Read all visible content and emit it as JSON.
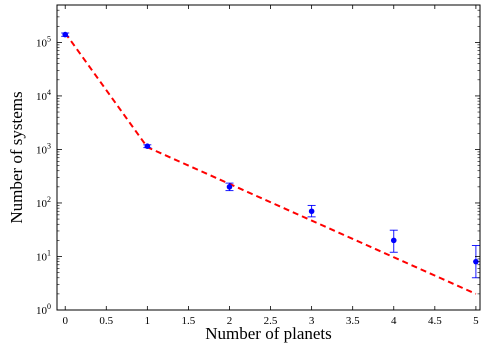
{
  "chart_data": {
    "type": "scatter",
    "title": "",
    "xlabel": "Number of planets",
    "ylabel": "Number of systems",
    "xlim": [
      -0.1,
      5.05
    ],
    "ylim": [
      1,
      500000
    ],
    "yscale": "log",
    "grid": false,
    "x_ticks": [
      0,
      0.5,
      1,
      1.5,
      2,
      2.5,
      3,
      3.5,
      4,
      4.5,
      5
    ],
    "x_tick_labels": [
      "0",
      "0.5",
      "1",
      "1.5",
      "2",
      "2.5",
      "3",
      "3.5",
      "4",
      "4.5",
      "5"
    ],
    "y_ticks": [
      1,
      10,
      100,
      1000,
      10000,
      100000
    ],
    "y_tick_labels": [
      {
        "base": "10",
        "exp": "0"
      },
      {
        "base": "10",
        "exp": "1"
      },
      {
        "base": "10",
        "exp": "2"
      },
      {
        "base": "10",
        "exp": "3"
      },
      {
        "base": "10",
        "exp": "4"
      },
      {
        "base": "10",
        "exp": "5"
      }
    ],
    "series": [
      {
        "kind": "points_with_error_bars",
        "color": "#0000ff",
        "points": [
          {
            "x": 0,
            "y": 140000,
            "lo": 130000,
            "hi": 150000
          },
          {
            "x": 1,
            "y": 1150,
            "lo": 1080,
            "hi": 1220
          },
          {
            "x": 2,
            "y": 200,
            "lo": 170,
            "hi": 235
          },
          {
            "x": 3,
            "y": 70,
            "lo": 55,
            "hi": 90
          },
          {
            "x": 4,
            "y": 20,
            "lo": 12,
            "hi": 31
          },
          {
            "x": 5,
            "y": 8,
            "lo": 4,
            "hi": 16
          }
        ]
      },
      {
        "kind": "fit_line",
        "style": "dashed",
        "color": "#ff0000",
        "x": [
          0,
          1,
          5
        ],
        "y": [
          150000,
          1100,
          2
        ]
      }
    ]
  }
}
